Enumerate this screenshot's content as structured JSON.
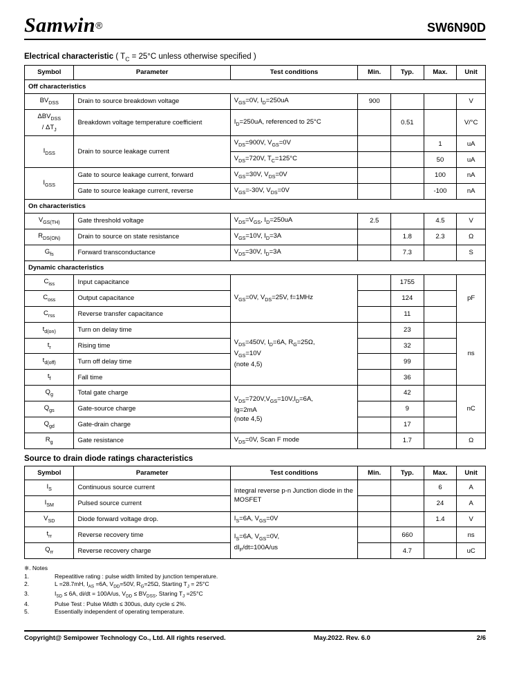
{
  "header": {
    "logo": "Samwin",
    "reg": "®",
    "part": "SW6N90D"
  },
  "section1": {
    "title": "Electrical characteristic",
    "cond": "( T",
    "cond_sub": "C",
    "cond_rest": " = 25°C unless otherwise specified )"
  },
  "columns": {
    "symbol": "Symbol",
    "param": "Parameter",
    "cond": "Test conditions",
    "min": "Min.",
    "typ": "Typ.",
    "max": "Max.",
    "unit": "Unit"
  },
  "subheads": {
    "off": "Off characteristics",
    "on": "On characteristics",
    "dyn": "Dynamic characteristics"
  },
  "rows": {
    "bvdss": {
      "sym": "BV",
      "sub": "DSS",
      "param": "Drain to source breakdown voltage",
      "cond": "V<sub>GS</sub>=0V, I<sub>D</sub>=250uA",
      "min": "900",
      "typ": "",
      "max": "",
      "unit": "V"
    },
    "dbvdss": {
      "sym_html": "ΔBV<sub>DSS</sub><br>/ ΔT<sub>J</sub>",
      "param": "Breakdown voltage temperature coefficient",
      "cond": "I<sub>D</sub>=250uA, referenced to 25°C",
      "min": "",
      "typ": "0.51",
      "max": "",
      "unit": "V/°C"
    },
    "idss1": {
      "sym": "I",
      "sub": "DSS",
      "param": "Drain to source leakage current",
      "cond": "V<sub>DS</sub>=900V, V<sub>GS</sub>=0V",
      "min": "",
      "typ": "",
      "max": "1",
      "unit": "uA"
    },
    "idss2": {
      "cond": "V<sub>DS</sub>=720V, T<sub>C</sub>=125°C",
      "min": "",
      "typ": "",
      "max": "50",
      "unit": "uA"
    },
    "igss1": {
      "sym": "I",
      "sub": "GSS",
      "param": "Gate to source leakage current, forward",
      "cond": "V<sub>GS</sub>=30V, V<sub>DS</sub>=0V",
      "min": "",
      "typ": "",
      "max": "100",
      "unit": "nA"
    },
    "igss2": {
      "param": "Gate to source leakage current, reverse",
      "cond": "V<sub>GS</sub>=-30V, V<sub>DS</sub>=0V",
      "min": "",
      "typ": "",
      "max": "-100",
      "unit": "nA"
    },
    "vgsth": {
      "sym": "V",
      "sub": "GS(TH)",
      "param": "Gate threshold voltage",
      "cond": "V<sub>DS</sub>=V<sub>GS</sub>, I<sub>D</sub>=250uA",
      "min": "2.5",
      "typ": "",
      "max": "4.5",
      "unit": "V"
    },
    "rdson": {
      "sym": "R",
      "sub": "DS(ON)",
      "param": "Drain to source on state resistance",
      "cond": "V<sub>GS</sub>=10V, I<sub>D</sub>=3A",
      "min": "",
      "typ": "1.8",
      "max": "2.3",
      "unit": "Ω"
    },
    "gfs": {
      "sym": "G",
      "sub": "fs",
      "param": "Forward transconductance",
      "cond": "V<sub>DS</sub>=30V, I<sub>D</sub>=3A",
      "min": "",
      "typ": "7.3",
      "max": "",
      "unit": "S"
    },
    "ciss": {
      "sym": "C",
      "sub": "iss",
      "param": "Input capacitance",
      "cond": "V<sub>GS</sub>=0V, V<sub>DS</sub>=25V, f=1MHz",
      "min": "",
      "typ": "1755",
      "max": "",
      "unit": "pF"
    },
    "coss": {
      "sym": "C",
      "sub": "oss",
      "param": "Output capacitance",
      "min": "",
      "typ": "124",
      "max": ""
    },
    "crss": {
      "sym": "C",
      "sub": "rss",
      "param": "Reverse transfer capacitance",
      "min": "",
      "typ": "11",
      "max": ""
    },
    "tdon": {
      "sym": "t",
      "sub": "d(on)",
      "param": "Turn on delay time",
      "cond": "V<sub>DS</sub>=450V, I<sub>D</sub>=6A, R<sub>G</sub>=25Ω,<br>V<sub>GS</sub>=10V<br>(note 4,5)",
      "min": "",
      "typ": "23",
      "max": "",
      "unit": "ns"
    },
    "tr": {
      "sym": "t",
      "sub": "r",
      "param": "Rising time",
      "min": "",
      "typ": "32",
      "max": ""
    },
    "tdoff": {
      "sym": "t",
      "sub": "d(off)",
      "param": "Turn off delay time",
      "min": "",
      "typ": "99",
      "max": ""
    },
    "tf": {
      "sym": "t",
      "sub": "f",
      "param": "Fall time",
      "min": "",
      "typ": "36",
      "max": ""
    },
    "qg": {
      "sym": "Q",
      "sub": "g",
      "param": "Total gate charge",
      "cond": "V<sub>DS</sub>=720V,V<sub>GS</sub>=10V,I<sub>D</sub>=6A,<br>Ig=2mA<br>(note 4,5)",
      "min": "",
      "typ": "42",
      "max": "",
      "unit": "nC"
    },
    "qgs": {
      "sym": "Q",
      "sub": "gs",
      "param": "Gate-source charge",
      "min": "",
      "typ": "9",
      "max": ""
    },
    "qgd": {
      "sym": "Q",
      "sub": "gd",
      "param": "Gate-drain charge",
      "min": "",
      "typ": "17",
      "max": ""
    },
    "rg": {
      "sym": "R",
      "sub": "g",
      "param": "Gate resistance",
      "cond": "V<sub>DS</sub>=0V, Scan F mode",
      "min": "",
      "typ": "1.7",
      "max": "",
      "unit": "Ω"
    }
  },
  "section2": {
    "title": "Source to drain diode ratings characteristics"
  },
  "rows2": {
    "is": {
      "sym": "I",
      "sub": "S",
      "param": "Continuous source current",
      "cond": "Integral reverse p-n Junction diode in the MOSFET",
      "min": "",
      "typ": "",
      "max": "6",
      "unit": "A"
    },
    "ism": {
      "sym": "I",
      "sub": "SM",
      "param": "Pulsed source current",
      "min": "",
      "typ": "",
      "max": "24",
      "unit": "A"
    },
    "vsd": {
      "sym": "V",
      "sub": "SD",
      "param": "Diode forward voltage drop.",
      "cond": "I<sub>S</sub>=6A, V<sub>GS</sub>=0V",
      "min": "",
      "typ": "",
      "max": "1.4",
      "unit": "V"
    },
    "trr": {
      "sym": "t",
      "sub": "rr",
      "param": "Reverse recovery time",
      "cond": "I<sub>S</sub>=6A, V<sub>GS</sub>=0V,<br>dI<sub>F</sub>/dt=100A/us",
      "min": "",
      "typ": "660",
      "max": "",
      "unit": "ns"
    },
    "qrr": {
      "sym": "Q",
      "sub": "rr",
      "param": "Reverse recovery charge",
      "min": "",
      "typ": "4.7",
      "max": "",
      "unit": "uC"
    }
  },
  "notes": {
    "title": "※. Notes",
    "items": [
      "Repeatitive rating : pulse width limited by junction temperature.",
      "L =28.7mH, I<sub>AS</sub> =6A, V<sub>DD</sub>=50V, R<sub>G</sub>=25Ω, Starting T<sub>J</sub> = 25°C",
      "I<sub>SD</sub> ≤ 6A, di/dt = 100A/us, V<sub>DD</sub> ≤ BV<sub>DSS</sub>, Staring T<sub>J</sub> =25°C",
      "Pulse Test : Pulse Width ≤ 300us, duty cycle ≤ 2%.",
      "Essentially independent of operating temperature."
    ]
  },
  "footer": {
    "copyright": "Copyright@ Semipower Technology Co., Ltd. All rights reserved.",
    "date": "May.2022. Rev. 6.0",
    "page": "2/6"
  }
}
